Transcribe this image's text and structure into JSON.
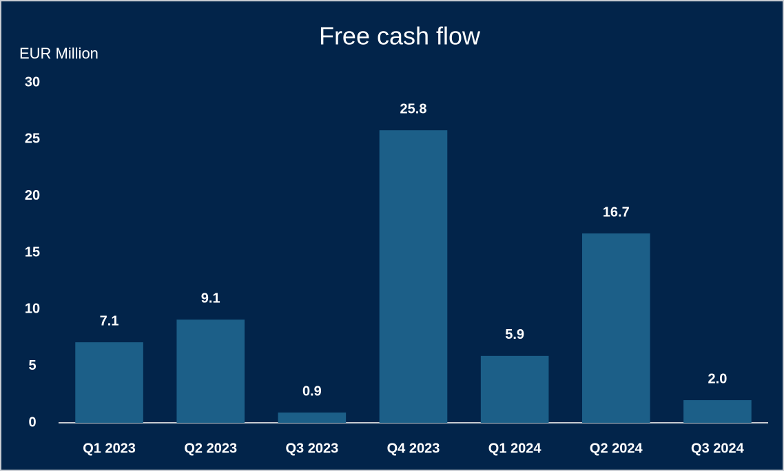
{
  "chart_data": {
    "type": "bar",
    "title": "Free cash flow",
    "y_axis_label": "EUR Million",
    "categories": [
      "Q1 2023",
      "Q2 2023",
      "Q3 2023",
      "Q4 2023",
      "Q1 2024",
      "Q2 2024",
      "Q3 2024"
    ],
    "values": [
      7.1,
      9.1,
      0.9,
      25.8,
      5.9,
      16.7,
      2.0
    ],
    "value_labels": [
      "7.1",
      "9.1",
      "0.9",
      "25.8",
      "5.9",
      "16.7",
      "2.0"
    ],
    "color": "#1c5f88",
    "ylim": [
      0,
      30
    ],
    "yticks": [
      0,
      5,
      10,
      15,
      20,
      25,
      30
    ],
    "grid": false
  }
}
